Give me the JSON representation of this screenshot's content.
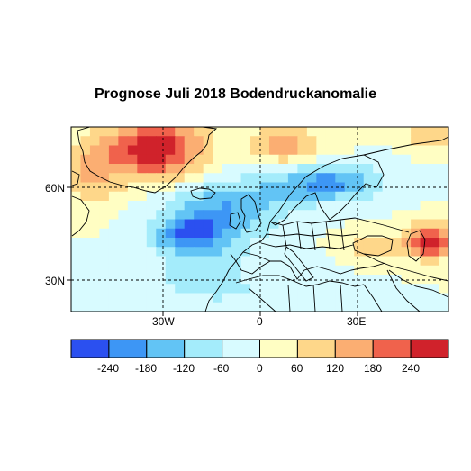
{
  "title": "Prognose Juli 2018 Bodendruckanomalie",
  "axes": {
    "lat_labels": [
      "60N",
      "30N"
    ],
    "lon_labels": [
      "30W",
      "0",
      "30E"
    ]
  },
  "colorbar": {
    "tick_labels": [
      "-240",
      "-180",
      "-120",
      "-60",
      "0",
      "60",
      "120",
      "180",
      "240"
    ],
    "colors": [
      "#2b50f0",
      "#3d96f5",
      "#62c4f5",
      "#a4ecfb",
      "#d8fbff",
      "#fffec3",
      "#fed78a",
      "#fbae72",
      "#f0624c",
      "#d0222b"
    ]
  },
  "map_field": {
    "legend_colors": [
      "#2b50f0",
      "#3d96f5",
      "#62c4f5",
      "#a4ecfb",
      "#d8fbff",
      "#fffec3",
      "#fed78a",
      "#fbae72",
      "#f0624c",
      "#d0222b"
    ],
    "features": [
      "Strong positive anomaly over Greenland",
      "Negative anomaly band across the North Atlantic to Scandinavia",
      "Positive anomaly near the Caspian/Caucasus region"
    ]
  }
}
